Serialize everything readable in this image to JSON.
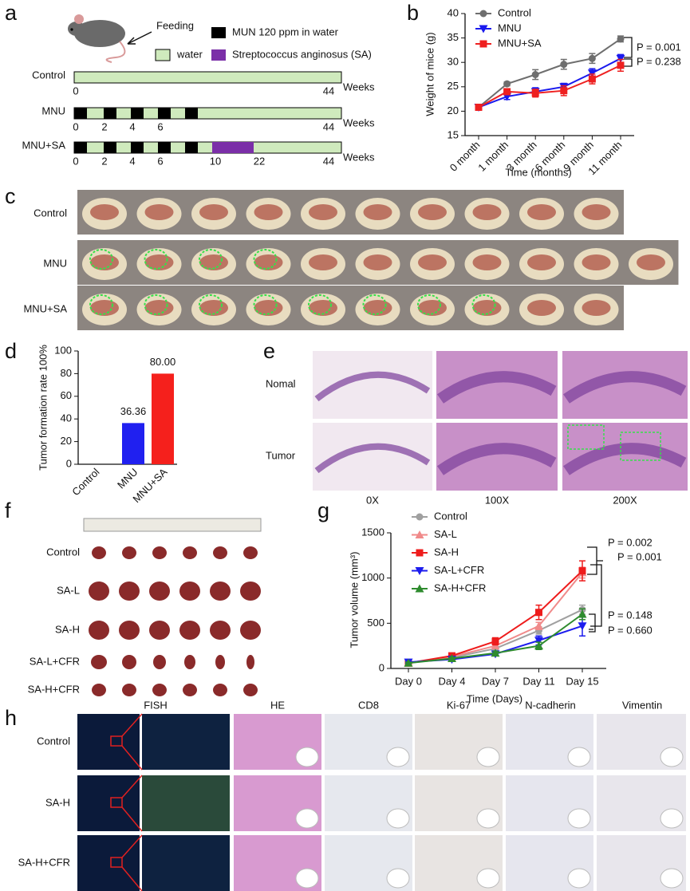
{
  "panel_labels": [
    "a",
    "b",
    "c",
    "d",
    "e",
    "f",
    "g",
    "h"
  ],
  "timeline": {
    "feeding": "Feeding",
    "legend": [
      "MUN 120 ppm in water",
      "water",
      "Streptococcus anginosus (SA)"
    ],
    "rows": [
      "Control",
      "MNU",
      "MNU+SA"
    ],
    "ticks": [
      [
        0,
        44
      ],
      [
        0,
        2,
        4,
        6,
        44
      ],
      [
        0,
        2,
        4,
        6,
        10,
        22,
        44
      ]
    ],
    "unit": "Weeks"
  },
  "chart_data": [
    {
      "type": "line",
      "xlabel": "Time (months)",
      "ylabel": "Weight of mice (g)",
      "categories": [
        "0 month",
        "1 month",
        "3 month",
        "6 month",
        "9 month",
        "11 month"
      ],
      "ylim": [
        15,
        40
      ],
      "yticks": [
        15,
        20,
        25,
        30,
        35,
        40
      ],
      "series": [
        {
          "name": "Control",
          "color": "#6e6e6e",
          "marker": "circle",
          "values": [
            20.8,
            25.6,
            27.5,
            29.6,
            30.8,
            34.8
          ],
          "errors": [
            0.3,
            0.4,
            1.0,
            1.0,
            1.0,
            0.6
          ]
        },
        {
          "name": "MNU",
          "color": "#1a1aee",
          "marker": "triangle-down",
          "values": [
            20.8,
            23.0,
            24.0,
            25.0,
            27.8,
            30.8
          ],
          "errors": [
            0.3,
            0.6,
            0.8,
            0.7,
            0.9,
            0.8
          ]
        },
        {
          "name": "MNU+SA",
          "color": "#ee2020",
          "marker": "square",
          "values": [
            20.8,
            24.0,
            23.7,
            24.2,
            26.6,
            29.4
          ],
          "errors": [
            0.3,
            0.6,
            0.8,
            1.0,
            1.0,
            1.2
          ]
        }
      ],
      "annotations": [
        "P = 0.001",
        "P = 0.238"
      ]
    },
    {
      "type": "bar",
      "ylabel": "Tumor formation rate 100%",
      "categories": [
        "Control",
        "MNU",
        "MNU+SA"
      ],
      "values": [
        0,
        36.36,
        80.0
      ],
      "value_labels": [
        null,
        "36.36",
        "80.00"
      ],
      "colors": [
        "#2020f0",
        "#2020f0",
        "#f5201c"
      ],
      "ylim": [
        0,
        100
      ],
      "yticks": [
        0,
        20,
        40,
        60,
        80,
        100
      ]
    },
    {
      "type": "line",
      "xlabel": "Time (Days)",
      "ylabel": "Tumor volume (mm³)",
      "categories": [
        "Day 0",
        "Day 4",
        "Day 7",
        "Day 11",
        "Day 15"
      ],
      "ylim": [
        0,
        1500
      ],
      "yticks": [
        0,
        500,
        1000,
        1500
      ],
      "series": [
        {
          "name": "Control",
          "color": "#a0a0a0",
          "marker": "circle",
          "values": [
            60,
            120,
            220,
            420,
            650
          ],
          "errors": [
            10,
            15,
            20,
            40,
            50
          ]
        },
        {
          "name": "SA-L",
          "color": "#f08a8a",
          "marker": "triangle-up",
          "values": [
            60,
            130,
            250,
            470,
            1060
          ],
          "errors": [
            10,
            15,
            30,
            40,
            60
          ]
        },
        {
          "name": "SA-H",
          "color": "#ee1c1c",
          "marker": "square",
          "values": [
            60,
            140,
            300,
            620,
            1080
          ],
          "errors": [
            10,
            15,
            40,
            80,
            110
          ]
        },
        {
          "name": "SA-L+CFR",
          "color": "#1c1cee",
          "marker": "triangle-down",
          "values": [
            70,
            100,
            160,
            310,
            470
          ],
          "errors": [
            10,
            15,
            20,
            50,
            110
          ]
        },
        {
          "name": "SA-H+CFR",
          "color": "#2e8b2e",
          "marker": "triangle-up",
          "values": [
            60,
            110,
            170,
            250,
            600
          ],
          "errors": [
            10,
            15,
            20,
            40,
            60
          ]
        }
      ],
      "annotations": [
        "P = 0.002",
        "P = 0.001",
        "P = 0.148",
        "P = 0.660"
      ]
    }
  ],
  "photos": {
    "rows": [
      "Control",
      "MNU",
      "MNU+SA"
    ]
  },
  "histology": {
    "rows": [
      "Nomal",
      "Tumor"
    ],
    "columns": [
      "0X",
      "100X",
      "200X"
    ]
  },
  "tumors": {
    "rows": [
      "Control",
      "SA-L",
      "SA-H",
      "SA-L+CFR",
      "SA-H+CFR"
    ]
  },
  "staining": {
    "columns": [
      "FISH",
      "HE",
      "CD8",
      "Ki-67",
      "N-cadherin",
      "Vimentin"
    ],
    "rows": [
      "Control",
      "SA-H",
      "SA-H+CFR"
    ]
  }
}
